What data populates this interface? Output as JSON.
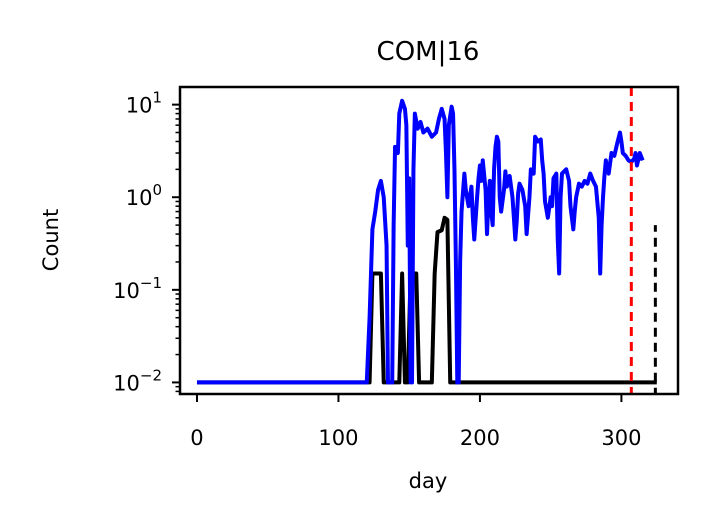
{
  "chart_data": {
    "type": "line",
    "title": "COM|16",
    "xlabel": "day",
    "ylabel": "Count",
    "yscale": "log",
    "xlim": [
      -12,
      340
    ],
    "ylim": [
      0.0075,
      15.5
    ],
    "x_ticks": [
      0,
      100,
      200,
      300
    ],
    "y_ticks": [
      {
        "value": 0.01,
        "base": "10",
        "exp": "−2"
      },
      {
        "value": 0.1,
        "base": "10",
        "exp": "−1"
      },
      {
        "value": 1,
        "base": "10",
        "exp": "0"
      },
      {
        "value": 10,
        "base": "10",
        "exp": "1"
      }
    ],
    "grid": false,
    "legend": "none",
    "series": [
      {
        "color": "#000000",
        "points": [
          [
            0,
            0.01
          ],
          [
            120,
            0.01
          ],
          [
            122,
            0.01
          ],
          [
            124,
            0.15
          ],
          [
            130,
            0.15
          ],
          [
            132,
            0.01
          ],
          [
            143,
            0.01
          ],
          [
            145,
            0.15
          ],
          [
            147,
            0.01
          ],
          [
            149,
            0.01
          ],
          [
            151,
            0.15
          ],
          [
            155,
            0.15
          ],
          [
            157,
            0.01
          ],
          [
            166,
            0.01
          ],
          [
            168,
            0.15
          ],
          [
            170,
            0.42
          ],
          [
            173,
            0.44
          ],
          [
            175,
            0.6
          ],
          [
            177,
            0.57
          ],
          [
            179,
            0.01
          ],
          [
            180,
            0.01
          ],
          [
            325,
            0.01
          ]
        ]
      },
      {
        "color": "#0000ff",
        "points": [
          [
            0,
            0.01
          ],
          [
            120,
            0.01
          ],
          [
            122,
            0.05
          ],
          [
            124,
            0.45
          ],
          [
            126,
            0.7
          ],
          [
            128,
            1.2
          ],
          [
            130,
            1.5
          ],
          [
            132,
            1.0
          ],
          [
            134,
            0.3
          ],
          [
            135,
            0.01
          ],
          [
            138,
            0.01
          ],
          [
            139,
            0.5
          ],
          [
            140,
            3.5
          ],
          [
            142,
            3.0
          ],
          [
            143,
            8.0
          ],
          [
            145,
            11.0
          ],
          [
            147,
            9.0
          ],
          [
            148,
            6.0
          ],
          [
            149,
            0.3
          ],
          [
            150,
            1.6
          ],
          [
            151,
            0.01
          ],
          [
            152,
            0.01
          ],
          [
            153,
            2.0
          ],
          [
            154,
            8.0
          ],
          [
            156,
            5.5
          ],
          [
            158,
            6.5
          ],
          [
            160,
            5.0
          ],
          [
            163,
            5.5
          ],
          [
            166,
            4.5
          ],
          [
            169,
            5.0
          ],
          [
            171,
            7.0
          ],
          [
            173,
            9.0
          ],
          [
            175,
            7.0
          ],
          [
            176,
            3.0
          ],
          [
            177,
            1.0
          ],
          [
            178,
            6.0
          ],
          [
            180,
            9.5
          ],
          [
            181,
            8.0
          ],
          [
            182,
            2.0
          ],
          [
            183,
            0.2
          ],
          [
            184,
            0.01
          ],
          [
            185,
            0.01
          ],
          [
            186,
            0.2
          ],
          [
            187,
            0.7
          ],
          [
            189,
            1.8
          ],
          [
            190,
            1.2
          ],
          [
            192,
            0.8
          ],
          [
            194,
            1.3
          ],
          [
            195,
            0.6
          ],
          [
            196,
            0.35
          ],
          [
            198,
            1.0
          ],
          [
            199,
            1.6
          ],
          [
            200,
            2.2
          ],
          [
            201,
            1.5
          ],
          [
            202,
            2.5
          ],
          [
            204,
            1.2
          ],
          [
            205,
            0.4
          ],
          [
            206,
            0.9
          ],
          [
            207,
            1.5
          ],
          [
            208,
            0.7
          ],
          [
            209,
            0.5
          ],
          [
            210,
            2.0
          ],
          [
            211,
            3.5
          ],
          [
            212,
            4.5
          ],
          [
            213,
            4.0
          ],
          [
            214,
            1.0
          ],
          [
            215,
            0.7
          ],
          [
            217,
            1.2
          ],
          [
            218,
            1.9
          ],
          [
            219,
            1.3
          ],
          [
            221,
            1.7
          ],
          [
            223,
            1.0
          ],
          [
            224,
            0.6
          ],
          [
            225,
            0.35
          ],
          [
            226,
            0.55
          ],
          [
            227,
            1.1
          ],
          [
            228,
            1.4
          ],
          [
            230,
            1.2
          ],
          [
            232,
            0.8
          ],
          [
            233,
            0.4
          ],
          [
            235,
            1.0
          ],
          [
            236,
            2.0
          ],
          [
            238,
            1.8
          ],
          [
            239,
            4.5
          ],
          [
            241,
            4.0
          ],
          [
            243,
            4.2
          ],
          [
            244,
            2.5
          ],
          [
            245,
            1.8
          ],
          [
            246,
            0.9
          ],
          [
            248,
            0.6
          ],
          [
            250,
            1.0
          ],
          [
            251,
            0.8
          ],
          [
            252,
            1.6
          ],
          [
            254,
            1.8
          ],
          [
            255,
            0.35
          ],
          [
            256,
            0.15
          ],
          [
            257,
            1.0
          ],
          [
            258,
            1.8
          ],
          [
            261,
            2.0
          ],
          [
            263,
            1.5
          ],
          [
            264,
            0.8
          ],
          [
            266,
            0.45
          ],
          [
            267,
            0.7
          ],
          [
            268,
            1.0
          ],
          [
            270,
            1.4
          ],
          [
            272,
            1.3
          ],
          [
            274,
            1.5
          ],
          [
            276,
            1.4
          ],
          [
            278,
            1.8
          ],
          [
            280,
            1.5
          ],
          [
            282,
            1.3
          ],
          [
            284,
            0.6
          ],
          [
            285,
            0.15
          ],
          [
            286,
            0.5
          ],
          [
            287,
            1.0
          ],
          [
            288,
            1.7
          ],
          [
            289,
            2.5
          ],
          [
            290,
            2.0
          ],
          [
            291,
            1.8
          ],
          [
            293,
            3.0
          ],
          [
            295,
            2.8
          ],
          [
            297,
            3.8
          ],
          [
            299,
            5.0
          ],
          [
            300,
            4.0
          ],
          [
            301,
            3.0
          ],
          [
            303,
            2.8
          ],
          [
            305,
            2.5
          ],
          [
            307,
            2.4
          ],
          [
            309,
            2.6
          ],
          [
            310,
            3.0
          ],
          [
            311,
            2.2
          ],
          [
            313,
            3.0
          ],
          [
            315,
            2.5
          ]
        ]
      },
      {
        "color": "#000000",
        "dashed": true,
        "points": [
          [
            324,
            0.007
          ],
          [
            324,
            0.5
          ]
        ]
      }
    ],
    "annotations": [
      {
        "type": "vline",
        "x": 307,
        "color": "#ff0000",
        "dashed": true
      }
    ]
  }
}
